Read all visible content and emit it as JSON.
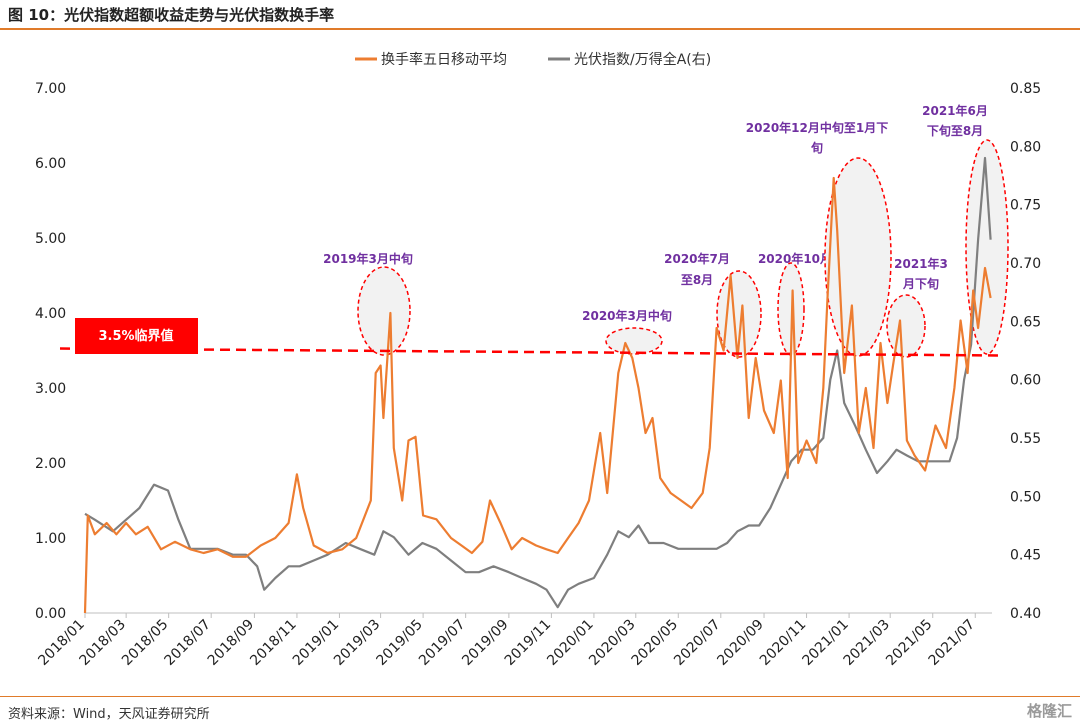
{
  "header": {
    "title": "图 10：光伏指数超额收益走势与光伏指数换手率"
  },
  "footer": {
    "source": "资料来源：Wind，天风证券研究所",
    "logo": "格隆汇"
  },
  "colors": {
    "turnover": "#ed7d31",
    "index": "#7f7f7f",
    "threshold": "#ff0000",
    "annotation": "#7030a0",
    "accent_rule": "#e07b2a"
  },
  "chart_data": {
    "type": "line",
    "legend_position": "top-center",
    "grid": false,
    "series": [
      {
        "name": "换手率五日移动平均",
        "axis": "left",
        "x": [
          "2018/01/01",
          "2018/01/05",
          "2018/01/15",
          "2018/02/01",
          "2018/02/15",
          "2018/03/01",
          "2018/03/15",
          "2018/04/01",
          "2018/04/20",
          "2018/05/10",
          "2018/06/01",
          "2018/06/20",
          "2018/07/10",
          "2018/08/01",
          "2018/08/20",
          "2018/09/10",
          "2018/10/01",
          "2018/10/20",
          "2018/11/01",
          "2018/11/10",
          "2018/11/25",
          "2018/12/15",
          "2019/01/05",
          "2019/01/25",
          "2019/02/15",
          "2019/02/22",
          "2019/03/01",
          "2019/03/05",
          "2019/03/15",
          "2019/03/20",
          "2019/04/01",
          "2019/04/10",
          "2019/04/20",
          "2019/05/01",
          "2019/05/20",
          "2019/06/10",
          "2019/06/25",
          "2019/07/10",
          "2019/07/25",
          "2019/08/05",
          "2019/08/20",
          "2019/09/05",
          "2019/09/20",
          "2019/10/10",
          "2019/10/25",
          "2019/11/10",
          "2019/11/25",
          "2019/12/10",
          "2019/12/25",
          "2020/01/10",
          "2020/01/20",
          "2020/02/05",
          "2020/02/15",
          "2020/02/25",
          "2020/03/05",
          "2020/03/15",
          "2020/03/25",
          "2020/04/05",
          "2020/04/20",
          "2020/05/05",
          "2020/05/20",
          "2020/06/05",
          "2020/06/15",
          "2020/06/25",
          "2020/07/05",
          "2020/07/15",
          "2020/07/25",
          "2020/08/01",
          "2020/08/10",
          "2020/08/20",
          "2020/09/01",
          "2020/09/15",
          "2020/09/25",
          "2020/10/05",
          "2020/10/12",
          "2020/10/20",
          "2020/11/01",
          "2020/11/15",
          "2020/11/25",
          "2020/12/01",
          "2020/12/10",
          "2020/12/15",
          "2020/12/25",
          "2021/01/05",
          "2021/01/15",
          "2021/01/25",
          "2021/02/05",
          "2021/02/15",
          "2021/02/25",
          "2021/03/05",
          "2021/03/15",
          "2021/03/25",
          "2021/04/05",
          "2021/04/20",
          "2021/05/05",
          "2021/05/20",
          "2021/06/01",
          "2021/06/10",
          "2021/06/20",
          "2021/06/28",
          "2021/07/05",
          "2021/07/15",
          "2021/07/23"
        ],
        "values": [
          0.0,
          1.3,
          1.05,
          1.2,
          1.05,
          1.2,
          1.05,
          1.15,
          0.85,
          0.95,
          0.85,
          0.8,
          0.85,
          0.75,
          0.75,
          0.9,
          1.0,
          1.2,
          1.85,
          1.4,
          0.9,
          0.8,
          0.85,
          1.0,
          1.5,
          3.2,
          3.3,
          2.6,
          4.0,
          2.2,
          1.5,
          2.3,
          2.35,
          1.3,
          1.25,
          1.0,
          0.9,
          0.8,
          0.95,
          1.5,
          1.2,
          0.85,
          1.0,
          0.9,
          0.85,
          0.8,
          1.0,
          1.2,
          1.5,
          2.4,
          1.6,
          3.2,
          3.6,
          3.4,
          3.0,
          2.4,
          2.6,
          1.8,
          1.6,
          1.5,
          1.4,
          1.6,
          2.2,
          3.8,
          3.5,
          4.5,
          3.4,
          4.1,
          2.6,
          3.4,
          2.7,
          2.4,
          3.1,
          1.8,
          4.3,
          2.0,
          2.3,
          2.0,
          3.0,
          4.2,
          5.8,
          5.1,
          3.2,
          4.1,
          2.4,
          3.0,
          2.2,
          3.6,
          2.8,
          3.3,
          3.9,
          2.3,
          2.1,
          1.9,
          2.5,
          2.2,
          3.0,
          3.9,
          3.2,
          4.3,
          3.8,
          4.6,
          4.2
        ]
      },
      {
        "name": "光伏指数/万得全A(右)",
        "axis": "right",
        "x": [
          "2018/01/01",
          "2018/01/15",
          "2018/02/10",
          "2018/03/01",
          "2018/03/20",
          "2018/04/10",
          "2018/04/30",
          "2018/05/15",
          "2018/06/01",
          "2018/06/20",
          "2018/07/10",
          "2018/08/01",
          "2018/08/20",
          "2018/09/05",
          "2018/09/15",
          "2018/10/01",
          "2018/10/20",
          "2018/11/05",
          "2018/11/25",
          "2018/12/15",
          "2019/01/10",
          "2019/01/30",
          "2019/02/20",
          "2019/03/05",
          "2019/03/20",
          "2019/04/10",
          "2019/04/30",
          "2019/05/20",
          "2019/06/10",
          "2019/07/01",
          "2019/07/20",
          "2019/08/10",
          "2019/09/01",
          "2019/09/20",
          "2019/10/10",
          "2019/10/25",
          "2019/11/10",
          "2019/11/25",
          "2019/12/10",
          "2020/01/01",
          "2020/01/20",
          "2020/02/05",
          "2020/02/20",
          "2020/03/05",
          "2020/03/20",
          "2020/04/10",
          "2020/05/01",
          "2020/05/20",
          "2020/06/10",
          "2020/06/25",
          "2020/07/10",
          "2020/07/25",
          "2020/08/10",
          "2020/08/25",
          "2020/09/10",
          "2020/09/25",
          "2020/10/10",
          "2020/10/25",
          "2020/11/10",
          "2020/11/25",
          "2020/12/05",
          "2020/12/15",
          "2020/12/25",
          "2021/01/10",
          "2021/01/25",
          "2021/02/10",
          "2021/02/25",
          "2021/03/10",
          "2021/03/25",
          "2021/04/10",
          "2021/04/25",
          "2021/05/10",
          "2021/05/25",
          "2021/06/05",
          "2021/06/15",
          "2021/06/25",
          "2021/07/05",
          "2021/07/15",
          "2021/07/23"
        ],
        "values": [
          0.485,
          0.48,
          0.47,
          0.48,
          0.49,
          0.51,
          0.505,
          0.48,
          0.455,
          0.455,
          0.455,
          0.45,
          0.45,
          0.44,
          0.42,
          0.43,
          0.44,
          0.44,
          0.445,
          0.45,
          0.46,
          0.455,
          0.45,
          0.47,
          0.465,
          0.45,
          0.46,
          0.455,
          0.445,
          0.435,
          0.435,
          0.44,
          0.435,
          0.43,
          0.425,
          0.42,
          0.405,
          0.42,
          0.425,
          0.43,
          0.45,
          0.47,
          0.465,
          0.475,
          0.46,
          0.46,
          0.455,
          0.455,
          0.455,
          0.455,
          0.46,
          0.47,
          0.475,
          0.475,
          0.49,
          0.51,
          0.53,
          0.54,
          0.54,
          0.55,
          0.6,
          0.625,
          0.58,
          0.56,
          0.54,
          0.52,
          0.53,
          0.54,
          0.535,
          0.53,
          0.53,
          0.53,
          0.53,
          0.55,
          0.6,
          0.63,
          0.72,
          0.79,
          0.72
        ]
      }
    ],
    "left_axis": {
      "ylim": [
        0,
        7
      ],
      "ticks": [
        "0.00",
        "1.00",
        "2.00",
        "3.00",
        "4.00",
        "5.00",
        "6.00",
        "7.00"
      ]
    },
    "right_axis": {
      "ylim": [
        0.4,
        0.85
      ],
      "ticks": [
        "0.40",
        "0.45",
        "0.50",
        "0.55",
        "0.60",
        "0.65",
        "0.70",
        "0.75",
        "0.80",
        "0.85"
      ]
    },
    "x_axis": {
      "range": [
        "2018/01/01",
        "2021/07/25"
      ],
      "ticks": [
        "2018/01",
        "2018/03",
        "2018/05",
        "2018/07",
        "2018/09",
        "2018/11",
        "2019/01",
        "2019/03",
        "2019/05",
        "2019/07",
        "2019/09",
        "2019/11",
        "2020/01",
        "2020/03",
        "2020/05",
        "2020/07",
        "2020/09",
        "2020/11",
        "2021/01",
        "2021/03",
        "2021/05",
        "2021/07"
      ]
    },
    "threshold": {
      "value": 3.5,
      "label": "3.5%临界值"
    },
    "annotations": [
      {
        "label": "2019年3月中旬",
        "date": "2019/03/12",
        "value": 3.8
      },
      {
        "label": "2020年3月中旬",
        "date": "2020/03/08",
        "value": 3.6
      },
      {
        "label": "2020年7月至8月",
        "date": "2020/07/25",
        "value": 3.95
      },
      {
        "label": "2020年10月",
        "date": "2020/10/15",
        "value": 3.9
      },
      {
        "label": "2020年12月中旬至1月下旬",
        "date": "2020/12/25",
        "value": 4.7
      },
      {
        "label": "2021年3月下旬",
        "date": "2021/03/10",
        "value": 3.6
      },
      {
        "label": "2021年6月下旬至8月",
        "date": "2021/07/05",
        "value": 4.6
      }
    ]
  }
}
